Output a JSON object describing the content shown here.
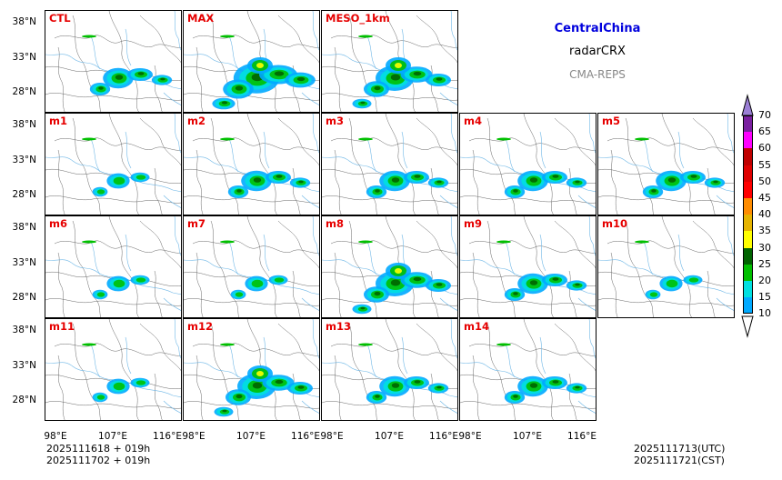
{
  "region_title": "CentralChina",
  "product": "radarCRX",
  "system": "CMA-REPS",
  "colors": {
    "title": "#0000dd",
    "system": "#888888",
    "label": "#e60000"
  },
  "panels": [
    {
      "label": "CTL",
      "echo": 2
    },
    {
      "label": "MAX",
      "echo": 4
    },
    {
      "label": "MESO_1km",
      "echo": 3
    },
    {
      "label": "m1",
      "echo": 1
    },
    {
      "label": "m2",
      "echo": 2
    },
    {
      "label": "m3",
      "echo": 2
    },
    {
      "label": "m4",
      "echo": 2
    },
    {
      "label": "m5",
      "echo": 2
    },
    {
      "label": "m6",
      "echo": 1
    },
    {
      "label": "m7",
      "echo": 1
    },
    {
      "label": "m8",
      "echo": 3
    },
    {
      "label": "m9",
      "echo": 2
    },
    {
      "label": "m10",
      "echo": 1
    },
    {
      "label": "m11",
      "echo": 1
    },
    {
      "label": "m12",
      "echo": 3
    },
    {
      "label": "m13",
      "echo": 2
    },
    {
      "label": "m14",
      "echo": 2
    }
  ],
  "lat_ticks": [
    "38°N",
    "33°N",
    "28°N"
  ],
  "lon_ticks": [
    "98°E",
    "107°E",
    "116°E"
  ],
  "colorbar": {
    "labels": [
      "70",
      "65",
      "60",
      "55",
      "50",
      "45",
      "40",
      "35",
      "30",
      "25",
      "20",
      "15",
      "10"
    ],
    "colors": [
      "#7a1fa0",
      "#ff00ff",
      "#c00000",
      "#e00000",
      "#ff0000",
      "#ff8c00",
      "#e6b400",
      "#ffff00",
      "#006400",
      "#00c000",
      "#00e0e0",
      "#00aaff"
    ],
    "top_extend": "#9b7fd6",
    "bottom_extend": "#ffffff"
  },
  "init_time": {
    "line1": "2025111618  +  019h",
    "line2": "2025111702  +  019h"
  },
  "valid_time": {
    "utc": "2025111713(UTC)",
    "cst": "2025111721(CST)"
  }
}
